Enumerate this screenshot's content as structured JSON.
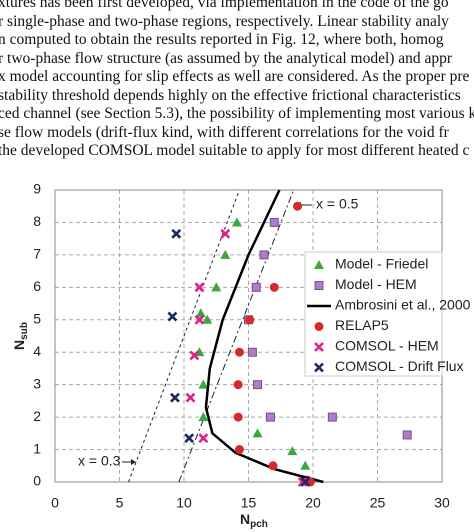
{
  "text_lines": [
    "xtures has been first developed, via implementation in the code of the go",
    "r single-phase and two-phase regions, respectively. Linear stability analy",
    "n computed to obtain the results reported in Fig. 12, where both, homog",
    "r two-phase flow structure (as assumed by the analytical model) and appr",
    "x model accounting for slip effects as well are considered. As the proper pre",
    "stability threshold depends highly on the effective frictional characteristics",
    "ced channel (see Section 5.3), the possibility of implementing most various k",
    "se flow models (drift-flux kind, with different correlations for the void fr",
    "the developed COMSOL model suitable to apply for most different heated c"
  ],
  "chart_data": {
    "type": "scatter",
    "x_label": "N",
    "x_label_sub": "pch",
    "y_label": "N",
    "y_label_sub": "sub",
    "xlim": [
      0,
      30
    ],
    "xticks": [
      0,
      5,
      10,
      15,
      20,
      25,
      30
    ],
    "ylim": [
      0,
      9
    ],
    "yticks": [
      0,
      1,
      2,
      3,
      4,
      5,
      6,
      7,
      8,
      9
    ],
    "grid": true,
    "legend": "right",
    "series": [
      {
        "name": "Model - Friedel",
        "type": "scatter",
        "marker": "triangle",
        "color": "#3aa83a",
        "x": [
          14.1,
          13.2,
          12.5,
          11.3,
          11.8,
          11.2,
          11.5,
          11.5,
          15.7,
          18.4,
          19.4
        ],
        "values": [
          8.0,
          7.0,
          6.0,
          5.2,
          5.0,
          4.0,
          3.0,
          2.0,
          1.5,
          0.95,
          0.5
        ]
      },
      {
        "name": "Model - HEM",
        "type": "scatter",
        "marker": "square",
        "color": "#b07cc6",
        "x": [
          17.0,
          16.2,
          15.6,
          15.0,
          15.3,
          15.7,
          16.7,
          21.5,
          27.3,
          19.4
        ],
        "values": [
          8.0,
          7.0,
          6.0,
          5.0,
          4.0,
          3.0,
          2.0,
          2.0,
          1.45,
          0.05
        ]
      },
      {
        "name": "Ambrosini et al., 2000",
        "type": "line",
        "marker": "line",
        "color": "#000000",
        "x": [
          17.4,
          15.0,
          13.0,
          12.0,
          11.7,
          12.2,
          14.0,
          17.0,
          20.8
        ],
        "values": [
          9.0,
          7.0,
          5.0,
          3.5,
          2.3,
          1.5,
          0.9,
          0.4,
          0.0
        ]
      },
      {
        "name": "RELAP5",
        "type": "scatter",
        "marker": "circle",
        "color": "#d42a2a",
        "x": [
          18.8,
          17.0,
          15.1,
          14.3,
          14.2,
          14.2,
          14.3,
          16.9,
          19.8
        ],
        "values": [
          8.5,
          6.0,
          5.0,
          4.0,
          3.0,
          2.0,
          1.0,
          0.5,
          0.0
        ]
      },
      {
        "name": "COMSOL - HEM",
        "type": "scatter",
        "marker": "cross",
        "color": "#e0218a",
        "x": [
          13.2,
          11.2,
          11.2,
          10.8,
          10.5,
          11.5,
          19.2
        ],
        "values": [
          7.65,
          6.0,
          5.0,
          3.9,
          2.6,
          1.35,
          0.0
        ]
      },
      {
        "name": "COMSOL - Drift Flux",
        "type": "scatter",
        "marker": "cross",
        "color": "#1a2a5e",
        "x": [
          9.4,
          9.1,
          9.3,
          10.4,
          19.4
        ],
        "values": [
          7.65,
          5.1,
          2.6,
          1.35,
          0.0
        ]
      }
    ],
    "reference_lines": [
      {
        "label": "x = 0.3",
        "dash": "3,3",
        "x": [
          5.7,
          14.3
        ],
        "values": [
          0,
          9
        ]
      },
      {
        "label": "x = 0.5",
        "dash": "7,3,2,3",
        "x": [
          9.6,
          18.5
        ],
        "values": [
          0,
          9
        ]
      }
    ]
  }
}
